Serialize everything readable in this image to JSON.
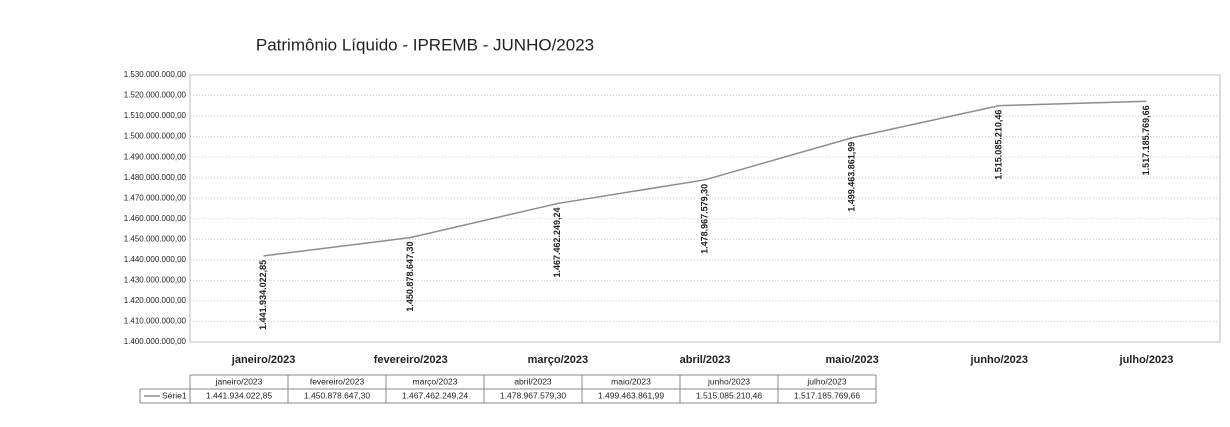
{
  "chart_data": {
    "type": "line",
    "title": "Patrimônio Líquido - IPREMB - JUNHO/2023",
    "categories": [
      "janeiro/2023",
      "fevereiro/2023",
      "março/2023",
      "abril/2023",
      "maio/2023",
      "junho/2023",
      "julho/2023"
    ],
    "series": [
      {
        "name": "Série1",
        "color": "#8c8c8c",
        "values": [
          1441934022.85,
          1450878647.3,
          1467462249.24,
          1478967579.3,
          1499463861.99,
          1515085210.46,
          1517185769.66
        ],
        "value_labels": [
          "1.441.934.022,85",
          "1.450.878.647,30",
          "1.467.462.249,24",
          "1.478.967.579,30",
          "1.499.463.861,99",
          "1.515.085.210,46",
          "1.517.185.769,66"
        ]
      }
    ],
    "ylim": [
      1400000000,
      1530000000
    ],
    "yticks": [
      {
        "value": 1400000000,
        "label": "1.400.000.000,00"
      },
      {
        "value": 1410000000,
        "label": "1.410.000.000,00"
      },
      {
        "value": 1420000000,
        "label": "1.420.000.000,00"
      },
      {
        "value": 1430000000,
        "label": "1.430.000.000,00"
      },
      {
        "value": 1440000000,
        "label": "1.440.000.000,00"
      },
      {
        "value": 1450000000,
        "label": "1.450.000.000,00"
      },
      {
        "value": 1460000000,
        "label": "1.460.000.000,00"
      },
      {
        "value": 1470000000,
        "label": "1.470.000.000,00"
      },
      {
        "value": 1480000000,
        "label": "1.480.000.000,00"
      },
      {
        "value": 1490000000,
        "label": "1.490.000.000,00"
      },
      {
        "value": 1500000000,
        "label": "1.500.000.000,00"
      },
      {
        "value": 1510000000,
        "label": "1.510.000.000,00"
      },
      {
        "value": 1520000000,
        "label": "1.520.000.000,00"
      },
      {
        "value": 1530000000,
        "label": "1.530.000.000,00"
      }
    ],
    "grid": true
  }
}
